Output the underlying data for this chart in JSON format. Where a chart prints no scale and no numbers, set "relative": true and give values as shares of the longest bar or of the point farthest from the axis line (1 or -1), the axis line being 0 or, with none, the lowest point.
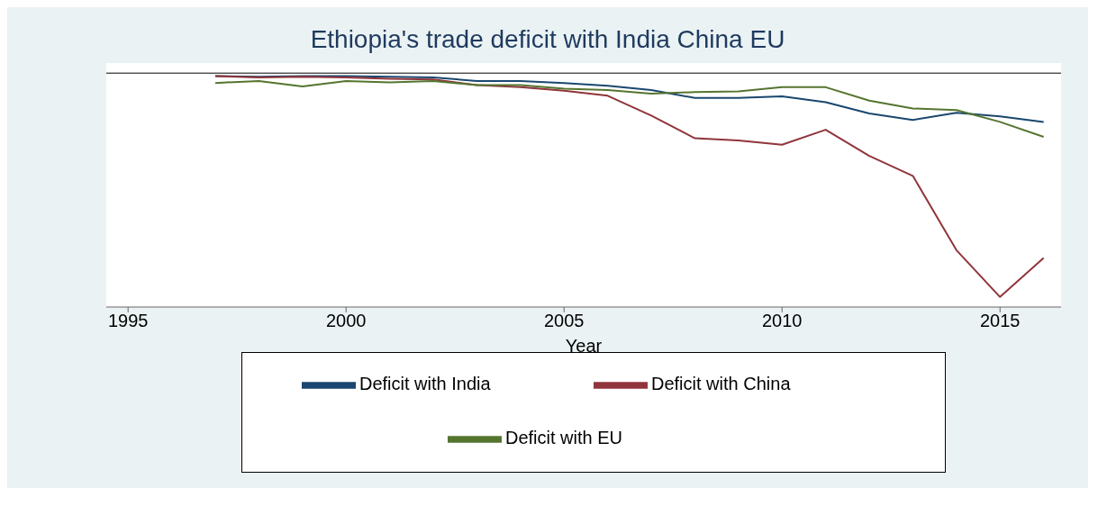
{
  "chart_data": {
    "type": "line",
    "title": "Ethiopia's trade deficit with India China EU",
    "xlabel": "Year",
    "relative": true,
    "x": [
      1997,
      1998,
      1999,
      2000,
      2001,
      2002,
      2003,
      2004,
      2005,
      2006,
      2007,
      2008,
      2009,
      2010,
      2011,
      2012,
      2013,
      2014,
      2015,
      2016
    ],
    "xlim": [
      1994.5,
      2016.4
    ],
    "xticks": [
      1995,
      2000,
      2005,
      2010,
      2015
    ],
    "legend": "bottom",
    "marker": "none",
    "line_style": "solid",
    "series": [
      {
        "name": "Deficit with India",
        "color": "#1a476f",
        "values": [
          -0.013,
          -0.016,
          -0.013,
          -0.013,
          -0.016,
          -0.019,
          -0.035,
          -0.035,
          -0.044,
          -0.057,
          -0.076,
          -0.111,
          -0.111,
          -0.104,
          -0.13,
          -0.18,
          -0.209,
          -0.177,
          -0.193,
          -0.218
        ]
      },
      {
        "name": "Deficit with China",
        "color": "#90353b",
        "values": [
          -0.013,
          -0.019,
          -0.016,
          -0.019,
          -0.025,
          -0.028,
          -0.054,
          -0.063,
          -0.079,
          -0.101,
          -0.19,
          -0.291,
          -0.301,
          -0.32,
          -0.253,
          -0.37,
          -0.459,
          -0.791,
          -1,
          -0.826
        ]
      },
      {
        "name": "Deficit with EU",
        "color": "#55752f",
        "values": [
          -0.044,
          -0.035,
          -0.06,
          -0.035,
          -0.041,
          -0.035,
          -0.054,
          -0.054,
          -0.07,
          -0.076,
          -0.092,
          -0.085,
          -0.082,
          -0.063,
          -0.063,
          -0.123,
          -0.158,
          -0.165,
          -0.218,
          -0.285
        ]
      }
    ]
  }
}
